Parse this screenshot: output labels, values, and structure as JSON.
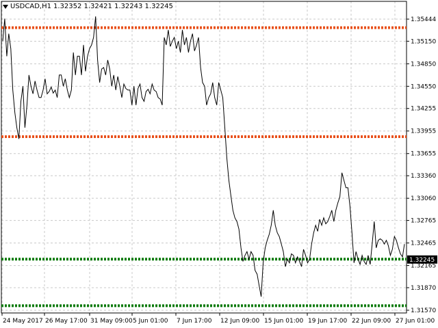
{
  "header": {
    "symbol_label": "USDCAD,H1",
    "ohlc": "1.32352 1.32421 1.32243 1.32245",
    "menu_icon": "triangle-down-icon"
  },
  "colors": {
    "background": "#ffffff",
    "grid": "#c8c8c8",
    "price_line": "#000000",
    "resistance": "#e8501a",
    "support": "#0a7a0a",
    "current_price_tag": "#000000"
  },
  "chart_data": {
    "type": "line",
    "title": "USDCAD,H1",
    "timeframe": "H1",
    "ylim": [
      1.3157,
      1.356
    ],
    "y_ticks": [
      "1.35444",
      "1.35150",
      "1.34850",
      "1.34550",
      "1.34255",
      "1.33955",
      "1.33655",
      "1.33360",
      "1.33060",
      "1.32765",
      "1.32465",
      "1.32165",
      "1.31870",
      "1.31570"
    ],
    "x_ticks": [
      "24 May 2017",
      "26 May 17:00",
      "31 May 09:00",
      "5 Jun 01:00",
      "7 Jun 17:00",
      "12 Jun 09:00",
      "15 Jun 01:00",
      "19 Jun 17:00",
      "22 Jun 09:00",
      "27 Jun 01:00"
    ],
    "current_price": "1.32245",
    "grid": true,
    "horizontal_levels": [
      {
        "kind": "resistance",
        "price": 1.3533,
        "color": "#e8501a"
      },
      {
        "kind": "resistance",
        "price": 1.3388,
        "color": "#e8501a"
      },
      {
        "kind": "support",
        "price": 1.3225,
        "color": "#0a7a0a"
      },
      {
        "kind": "support",
        "price": 1.3163,
        "color": "#0a7a0a"
      }
    ],
    "series": [
      {
        "values": [
          1.3515,
          1.3545,
          1.3495,
          1.3525,
          1.3505,
          1.345,
          1.342,
          1.34,
          1.3385,
          1.3435,
          1.3455,
          1.34,
          1.343,
          1.347,
          1.3455,
          1.3445,
          1.3462,
          1.345,
          1.344,
          1.344,
          1.345,
          1.3465,
          1.3445,
          1.3448,
          1.3454,
          1.3446,
          1.345,
          1.344,
          1.347,
          1.347,
          1.3455,
          1.3465,
          1.345,
          1.344,
          1.345,
          1.35,
          1.347,
          1.3495,
          1.3495,
          1.347,
          1.351,
          1.3475,
          1.3495,
          1.3505,
          1.351,
          1.352,
          1.3548,
          1.349,
          1.346,
          1.3478,
          1.348,
          1.347,
          1.349,
          1.3478,
          1.3455,
          1.347,
          1.345,
          1.3468,
          1.3455,
          1.344,
          1.3458,
          1.3452,
          1.345,
          1.345,
          1.343,
          1.3455,
          1.343,
          1.3452,
          1.3458,
          1.344,
          1.3435,
          1.3448,
          1.3451,
          1.3445,
          1.3458,
          1.345,
          1.3448,
          1.344,
          1.3438,
          1.343,
          1.352,
          1.351,
          1.353,
          1.3508,
          1.3515,
          1.352,
          1.3505,
          1.3515,
          1.35,
          1.353,
          1.351,
          1.352,
          1.35,
          1.3515,
          1.3525,
          1.3502,
          1.351,
          1.352,
          1.348,
          1.346,
          1.3455,
          1.343,
          1.344,
          1.3445,
          1.346,
          1.344,
          1.343,
          1.346,
          1.345,
          1.344,
          1.34,
          1.336,
          1.333,
          1.331,
          1.329,
          1.328,
          1.3275,
          1.3265,
          1.324,
          1.3222,
          1.323,
          1.3235,
          1.3225,
          1.3235,
          1.323,
          1.321,
          1.3205,
          1.319,
          1.3175,
          1.322,
          1.324,
          1.325,
          1.3258,
          1.327,
          1.329,
          1.327,
          1.326,
          1.3255,
          1.3245,
          1.3235,
          1.3215,
          1.3225,
          1.322,
          1.3232,
          1.323,
          1.322,
          1.3228,
          1.3222,
          1.3215,
          1.3238,
          1.323,
          1.322,
          1.3225,
          1.3245,
          1.326,
          1.327,
          1.3262,
          1.3278,
          1.327,
          1.328,
          1.3272,
          1.3275,
          1.3282,
          1.329,
          1.3275,
          1.329,
          1.33,
          1.3308,
          1.334,
          1.333,
          1.332,
          1.332,
          1.3295,
          1.326,
          1.322,
          1.3235,
          1.3225,
          1.3218,
          1.323,
          1.3222,
          1.3218,
          1.323,
          1.3218,
          1.3245,
          1.3275,
          1.324,
          1.325,
          1.3252,
          1.325,
          1.3245,
          1.325,
          1.3243,
          1.323,
          1.3238,
          1.3255,
          1.325,
          1.324,
          1.3232,
          1.3228,
          1.3245
        ]
      }
    ]
  }
}
